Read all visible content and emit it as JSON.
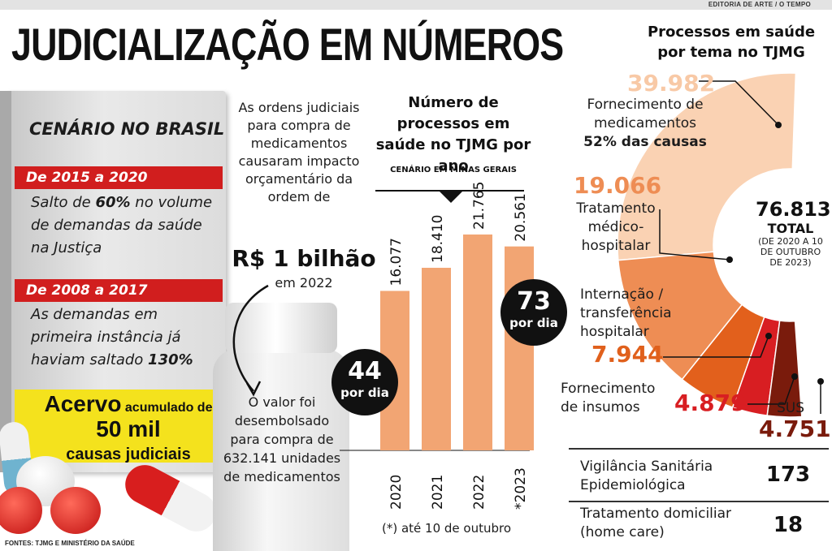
{
  "header": {
    "credit": "EDITORIA DE ARTE / O TEMPO",
    "title": "JUDICIALIZAÇÃO EM NÚMEROS"
  },
  "brasil": {
    "title": "CENÁRIO NO BRASIL",
    "period1": "De 2015 a 2020",
    "text1_a": "Salto de ",
    "text1_b": "60%",
    "text1_c": " no volume de demandas da saúde na Justiça",
    "period2": "De 2008 a 2017",
    "text2_a": "As demandas em primeira instância já haviam saltado ",
    "text2_b": "130%",
    "acervo_a": "Acervo",
    "acervo_b": " acumulado de",
    "acervo_c": "50 mil",
    "acervo_d": "causas judiciais"
  },
  "medicamentos": {
    "intro": "As ordens judiciais para compra de medicamentos causaram impacto orçamentário da ordem de",
    "value": "R$ 1 bilhão",
    "year": "em 2022",
    "bottle_text": "O valor foi desembolsado para compra de 632.141 unidades de medicamentos"
  },
  "sources": "FONTES: TJMG E MINISTÉRIO DA SAÚDE",
  "chart_data": [
    {
      "type": "bar",
      "title": "Número de processos em saúde no TJMG por ano",
      "subtitle": "CENÁRIO EM MINAS GERAIS",
      "categories": [
        "2020",
        "2021",
        "2022",
        "*2023"
      ],
      "values": [
        16077,
        18410,
        21765,
        20561
      ],
      "value_labels": [
        "16.077",
        "18.410",
        "21.765",
        "20.561"
      ],
      "ylim": [
        0,
        27000
      ],
      "color": "#f2a573",
      "annotations": [
        {
          "value": "44",
          "unit": "por dia"
        },
        {
          "value": "73",
          "unit": "por dia"
        }
      ],
      "footnote": "(*) até 10 de outubro"
    },
    {
      "type": "pie",
      "title": "Processos em saúde por tema no TJMG",
      "total": "76.813",
      "total_label": "TOTAL",
      "total_note": "(DE 2020 A 10 DE OUTUBRO DE 2023)",
      "slices": [
        {
          "name": "Fornecimento de medicamentos",
          "value": 39982,
          "label": "39.982",
          "note": "52% das causas",
          "color": "#fad2b3",
          "label_color": "#f8c9a6"
        },
        {
          "name": "Tratamento médico-hospitalar",
          "value": 19066,
          "label": "19.066",
          "color": "#ee8d54",
          "label_color": "#ee8d54"
        },
        {
          "name": "Internação / transferência hospitalar",
          "value": 7944,
          "label": "7.944",
          "color": "#e2601c",
          "label_color": "#e0601c"
        },
        {
          "name": "Fornecimento de insumos",
          "value": 4879,
          "label": "4.879",
          "color": "#d81e22",
          "label_color": "#d81e22"
        },
        {
          "name": "SUS",
          "value": 4751,
          "label": "4.751",
          "color": "#7a1b0c",
          "label_color": "#7a1b0c"
        }
      ],
      "table": [
        {
          "name": "Vigilância Sanitária Epidemiológica",
          "label": "173"
        },
        {
          "name": "Tratamento domiciliar (home care)",
          "label": "18"
        }
      ]
    }
  ]
}
